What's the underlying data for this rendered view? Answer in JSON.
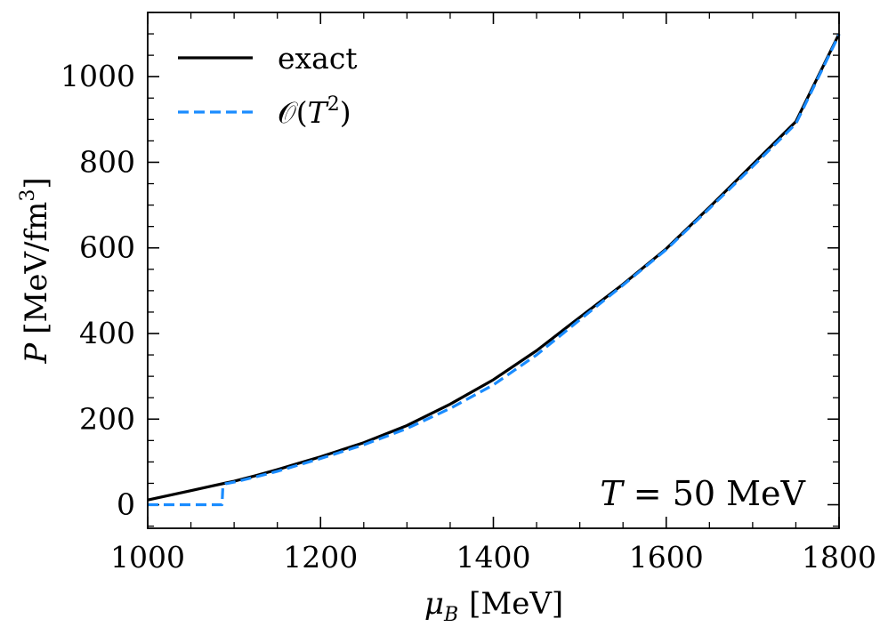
{
  "chart_data": {
    "type": "line",
    "xlabel_symbol": "μ",
    "xlabel_sub": "B",
    "xlabel_unit": "[MeV]",
    "ylabel_symbol": "P",
    "ylabel_unit": "[MeV/fm",
    "ylabel_unit_sup": "3",
    "ylabel_unit_close": "]",
    "xlim": [
      1000,
      1800
    ],
    "ylim": [
      -55,
      1150
    ],
    "xticks": [
      1000,
      1200,
      1400,
      1600,
      1800
    ],
    "yticks": [
      0,
      200,
      400,
      600,
      800,
      1000
    ],
    "x_minor_step": 50,
    "y_minor_step": 50,
    "grid": false,
    "legend_position": "top-left",
    "annotation": {
      "symbol": "T",
      "text": " = 50 MeV",
      "position": "bottom-right"
    },
    "series": [
      {
        "name": "exact",
        "color": "#000000",
        "style": "solid",
        "x": [
          1000,
          1025,
          1050,
          1075,
          1100,
          1125,
          1150,
          1175,
          1200,
          1250,
          1300,
          1350,
          1400,
          1450,
          1500,
          1550,
          1600,
          1650,
          1700,
          1750,
          1800
        ],
        "y": [
          11,
          22,
          33,
          44,
          55,
          68,
          82,
          97,
          112,
          145,
          185,
          235,
          292,
          360,
          438,
          515,
          598,
          695,
          795,
          895,
          1100
        ]
      },
      {
        "name_prefix": "𝒪(",
        "name_symbol": "T",
        "name_sup": "2",
        "name_suffix": ")",
        "color": "#1a8cff",
        "style": "dashed",
        "x": [
          1000,
          1086,
          1087,
          1090,
          1100,
          1125,
          1150,
          1175,
          1200,
          1250,
          1300,
          1350,
          1400,
          1450,
          1500,
          1550,
          1600,
          1650,
          1700,
          1750,
          1800
        ],
        "y": [
          0,
          0,
          44,
          49,
          53,
          65,
          78,
          93,
          108,
          140,
          178,
          225,
          280,
          350,
          432,
          513,
          596,
          692,
          790,
          890,
          1098
        ]
      }
    ]
  }
}
